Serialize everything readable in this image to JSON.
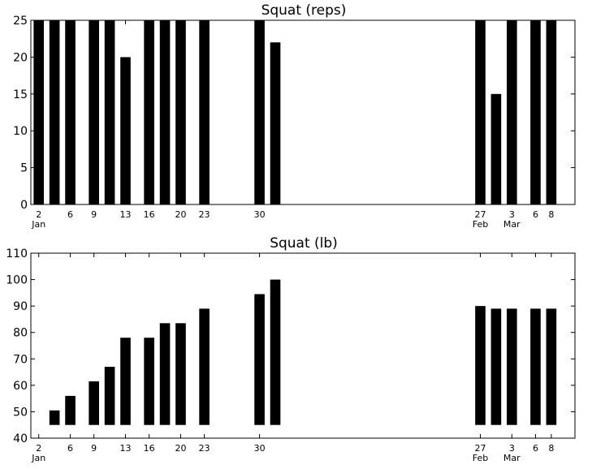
{
  "chart_data": [
    {
      "type": "bar",
      "title": "Squat (reps)",
      "xlabel": "",
      "ylabel": "",
      "ylim": [
        0,
        25
      ],
      "yticks": [
        0,
        5,
        10,
        15,
        20,
        25
      ],
      "xlim": [
        0,
        69
      ],
      "bar_width": 1.3,
      "xticks": [
        {
          "pos": 1,
          "label": "2",
          "sub": "Jan"
        },
        {
          "pos": 5,
          "label": "6",
          "sub": ""
        },
        {
          "pos": 8,
          "label": "9",
          "sub": ""
        },
        {
          "pos": 12,
          "label": "13",
          "sub": ""
        },
        {
          "pos": 15,
          "label": "16",
          "sub": ""
        },
        {
          "pos": 19,
          "label": "20",
          "sub": ""
        },
        {
          "pos": 22,
          "label": "23",
          "sub": ""
        },
        {
          "pos": 29,
          "label": "30",
          "sub": ""
        },
        {
          "pos": 57,
          "label": "27",
          "sub": "Feb"
        },
        {
          "pos": 61,
          "label": "3",
          "sub": "Mar"
        },
        {
          "pos": 64,
          "label": "6",
          "sub": ""
        },
        {
          "pos": 66,
          "label": "8",
          "sub": ""
        }
      ],
      "bars": [
        {
          "x": 1,
          "bottom": 0,
          "top": 25
        },
        {
          "x": 3,
          "bottom": 0,
          "top": 25
        },
        {
          "x": 5,
          "bottom": 0,
          "top": 25
        },
        {
          "x": 8,
          "bottom": 0,
          "top": 25
        },
        {
          "x": 10,
          "bottom": 0,
          "top": 25
        },
        {
          "x": 12,
          "bottom": 0,
          "top": 20
        },
        {
          "x": 15,
          "bottom": 0,
          "top": 25
        },
        {
          "x": 17,
          "bottom": 0,
          "top": 25
        },
        {
          "x": 19,
          "bottom": 0,
          "top": 25
        },
        {
          "x": 22,
          "bottom": 0,
          "top": 25
        },
        {
          "x": 29,
          "bottom": 0,
          "top": 25
        },
        {
          "x": 31,
          "bottom": 0,
          "top": 22
        },
        {
          "x": 57,
          "bottom": 0,
          "top": 25
        },
        {
          "x": 59,
          "bottom": 0,
          "top": 15
        },
        {
          "x": 61,
          "bottom": 0,
          "top": 25
        },
        {
          "x": 64,
          "bottom": 0,
          "top": 25
        },
        {
          "x": 66,
          "bottom": 0,
          "top": 25
        }
      ]
    },
    {
      "type": "bar",
      "title": "Squat (lb)",
      "xlabel": "",
      "ylabel": "",
      "ylim": [
        40,
        110
      ],
      "yticks": [
        40,
        50,
        60,
        70,
        80,
        90,
        100,
        110
      ],
      "xlim": [
        0,
        69
      ],
      "bar_width": 1.3,
      "xticks": [
        {
          "pos": 1,
          "label": "2",
          "sub": "Jan"
        },
        {
          "pos": 5,
          "label": "6",
          "sub": ""
        },
        {
          "pos": 8,
          "label": "9",
          "sub": ""
        },
        {
          "pos": 12,
          "label": "13",
          "sub": ""
        },
        {
          "pos": 15,
          "label": "16",
          "sub": ""
        },
        {
          "pos": 19,
          "label": "20",
          "sub": ""
        },
        {
          "pos": 22,
          "label": "23",
          "sub": ""
        },
        {
          "pos": 29,
          "label": "30",
          "sub": ""
        },
        {
          "pos": 57,
          "label": "27",
          "sub": "Feb"
        },
        {
          "pos": 61,
          "label": "3",
          "sub": "Mar"
        },
        {
          "pos": 64,
          "label": "6",
          "sub": ""
        },
        {
          "pos": 66,
          "label": "8",
          "sub": ""
        }
      ],
      "bars": [
        {
          "x": 3,
          "bottom": 45,
          "top": 50.5
        },
        {
          "x": 5,
          "bottom": 45,
          "top": 56
        },
        {
          "x": 8,
          "bottom": 45,
          "top": 61.5
        },
        {
          "x": 10,
          "bottom": 45,
          "top": 67
        },
        {
          "x": 12,
          "bottom": 45,
          "top": 78
        },
        {
          "x": 15,
          "bottom": 45,
          "top": 78
        },
        {
          "x": 17,
          "bottom": 45,
          "top": 83.5
        },
        {
          "x": 19,
          "bottom": 45,
          "top": 83.5
        },
        {
          "x": 22,
          "bottom": 45,
          "top": 89
        },
        {
          "x": 29,
          "bottom": 45,
          "top": 94.5
        },
        {
          "x": 31,
          "bottom": 45,
          "top": 100
        },
        {
          "x": 57,
          "bottom": 45,
          "top": 90
        },
        {
          "x": 59,
          "bottom": 45,
          "top": 89
        },
        {
          "x": 61,
          "bottom": 45,
          "top": 89
        },
        {
          "x": 64,
          "bottom": 45,
          "top": 89
        },
        {
          "x": 66,
          "bottom": 45,
          "top": 89
        }
      ]
    }
  ],
  "colors": {
    "bar": "#000000",
    "background": "#ffffff"
  }
}
